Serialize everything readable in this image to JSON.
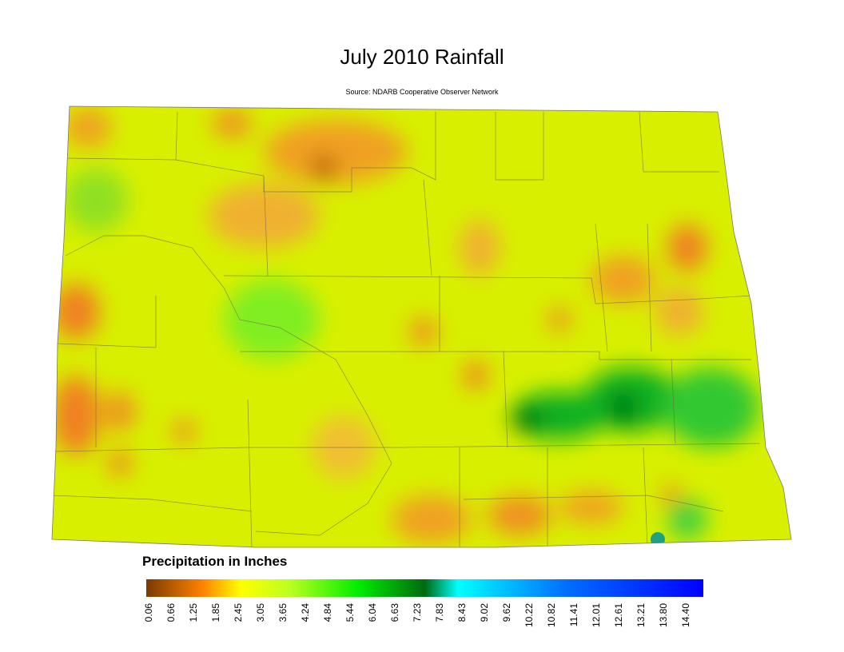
{
  "header": {
    "title": "July 2010 Rainfall",
    "source": "Source: NDARB Cooperative Observer Network"
  },
  "legend": {
    "title": "Precipitation in Inches",
    "ticks": [
      "0.06",
      "0.66",
      "1.25",
      "1.85",
      "2.45",
      "3.05",
      "3.65",
      "4.24",
      "4.84",
      "5.44",
      "6.04",
      "6.63",
      "7.23",
      "7.83",
      "8.43",
      "9.02",
      "9.62",
      "10.22",
      "10.82",
      "11.41",
      "12.01",
      "12.61",
      "13.21",
      "13.80",
      "14.40"
    ]
  }
}
